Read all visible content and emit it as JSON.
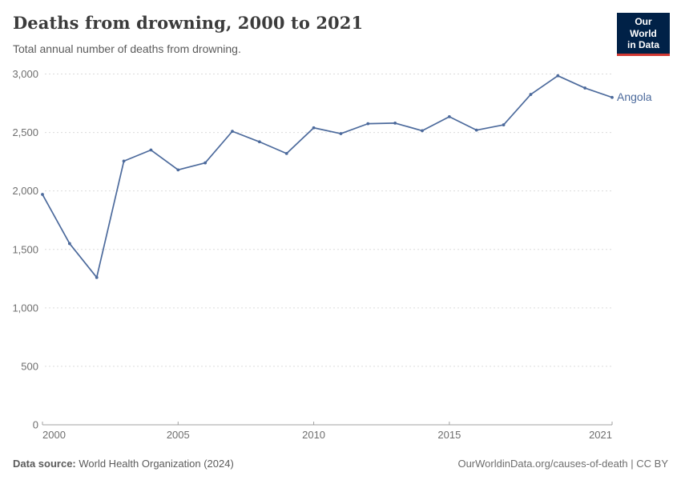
{
  "header": {
    "title": "Deaths from drowning, 2000 to 2021",
    "subtitle": "Total annual number of deaths from drowning.",
    "logo": {
      "line1": "Our World",
      "line2": "in Data",
      "bg_color": "#002147",
      "accent_color": "#d13832"
    }
  },
  "chart_data": {
    "type": "line",
    "title": "Deaths from drowning, 2000 to 2021",
    "subtitle": "Total annual number of deaths from drowning.",
    "entity": "Angola",
    "x": [
      2000,
      2001,
      2002,
      2003,
      2004,
      2005,
      2006,
      2007,
      2008,
      2009,
      2010,
      2011,
      2012,
      2013,
      2014,
      2015,
      2016,
      2017,
      2018,
      2019,
      2020,
      2021
    ],
    "series": [
      {
        "name": "Angola",
        "color": "#4C6A9C",
        "values": [
          1970,
          1550,
          1260,
          2255,
          2350,
          2180,
          2240,
          2510,
          2420,
          2320,
          2540,
          2490,
          2575,
          2580,
          2515,
          2635,
          2520,
          2565,
          2825,
          2985,
          2880,
          2800
        ]
      }
    ],
    "xlabel": "",
    "ylabel": "",
    "xlim": [
      2000,
      2021
    ],
    "ylim": [
      0,
      3000
    ],
    "xticks": [
      2000,
      2005,
      2010,
      2015,
      2021
    ],
    "yticks": [
      0,
      500,
      1000,
      1500,
      2000,
      2500,
      3000
    ],
    "grid": "horizontal-dashed",
    "legend_position": "end-of-line-label",
    "marker": "point"
  },
  "footer": {
    "datasource_label": "Data source:",
    "datasource_value": " World Health Organization (2024)",
    "link": "OurWorldinData.org/causes-of-death | CC BY"
  }
}
